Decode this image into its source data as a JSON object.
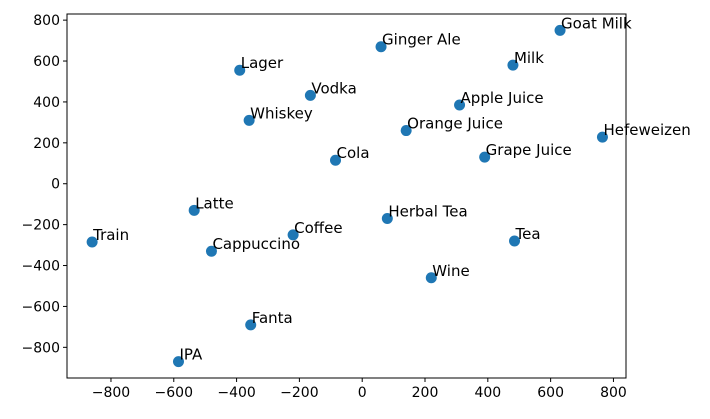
{
  "chart_data": {
    "type": "scatter",
    "title": "",
    "xlabel": "",
    "ylabel": "",
    "xlim": [
      -940,
      840
    ],
    "ylim": [
      -950,
      830
    ],
    "grid": false,
    "legend": "none",
    "marker_color": "#1f77b4",
    "xticks": [
      -800,
      -600,
      -400,
      -200,
      0,
      200,
      400,
      600,
      800
    ],
    "yticks": [
      800,
      600,
      400,
      200,
      0,
      -200,
      -400,
      -600,
      -800
    ],
    "xtick_labels": [
      "−800",
      "−600",
      "−400",
      "−200",
      "0",
      "200",
      "400",
      "600",
      "800"
    ],
    "ytick_labels": [
      "800",
      "600",
      "400",
      "200",
      "0",
      "−200",
      "−400",
      "−600",
      "−800"
    ],
    "points": [
      {
        "label": "Goat Milk",
        "x": 630,
        "y": 750
      },
      {
        "label": "Ginger Ale",
        "x": 60,
        "y": 670
      },
      {
        "label": "Milk",
        "x": 480,
        "y": 580
      },
      {
        "label": "Lager",
        "x": -390,
        "y": 555
      },
      {
        "label": "Vodka",
        "x": -165,
        "y": 432
      },
      {
        "label": "Apple Juice",
        "x": 310,
        "y": 385
      },
      {
        "label": "Whiskey",
        "x": -360,
        "y": 310
      },
      {
        "label": "Orange Juice",
        "x": 140,
        "y": 260
      },
      {
        "label": "Hefeweizen",
        "x": 765,
        "y": 228
      },
      {
        "label": "Grape Juice",
        "x": 390,
        "y": 130
      },
      {
        "label": "Cola",
        "x": -85,
        "y": 115
      },
      {
        "label": "Latte",
        "x": -535,
        "y": -130
      },
      {
        "label": "Herbal Tea",
        "x": 80,
        "y": -170
      },
      {
        "label": "Coffee",
        "x": -220,
        "y": -250
      },
      {
        "label": "Train",
        "x": -860,
        "y": -285
      },
      {
        "label": "Tea",
        "x": 485,
        "y": -280
      },
      {
        "label": "Cappuccino",
        "x": -480,
        "y": -330
      },
      {
        "label": "Wine",
        "x": 220,
        "y": -460
      },
      {
        "label": "Fanta",
        "x": -355,
        "y": -690
      },
      {
        "label": "IPA",
        "x": -585,
        "y": -870
      }
    ]
  }
}
